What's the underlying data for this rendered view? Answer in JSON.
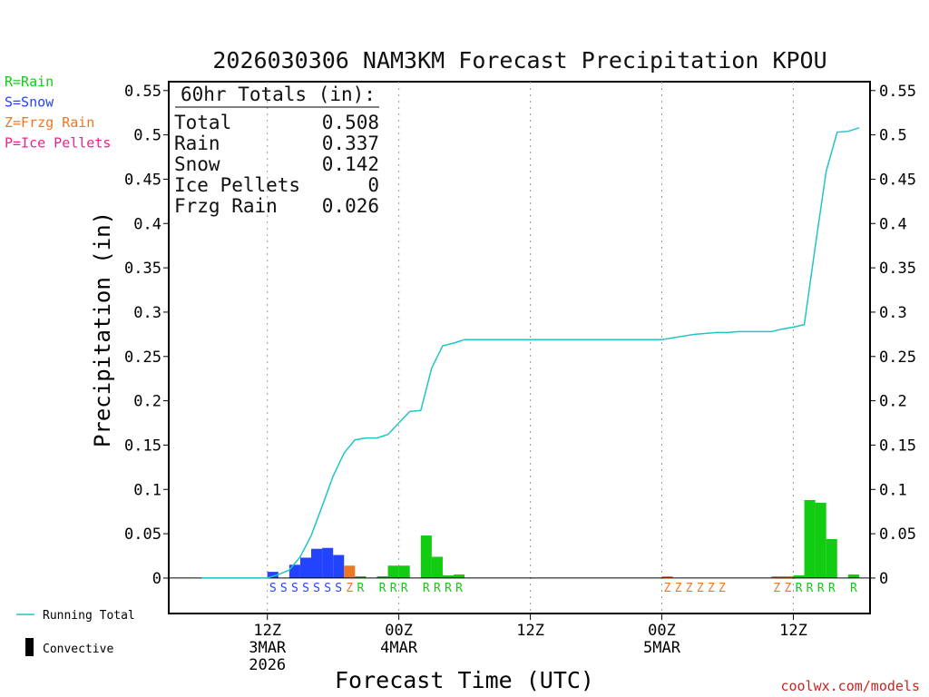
{
  "colors": {
    "rain": "#11cc11",
    "snow": "#2244ff",
    "frzg_rain": "#ee7722",
    "ice_pellets": "#ee2288",
    "running_total": "#22c4c4",
    "convective": "#000000",
    "credit": "#cc2222"
  },
  "legend_types": [
    {
      "key": "rain",
      "label": "R=Rain"
    },
    {
      "key": "snow",
      "label": "S=Snow"
    },
    {
      "key": "frzg_rain",
      "label": "Z=Frzg Rain"
    },
    {
      "key": "ice_pellets",
      "label": "P=Ice Pellets"
    }
  ],
  "legend_bottom": {
    "running_total": "Running Total",
    "convective": "Convective"
  },
  "totals_box": {
    "header": "60hr Totals (in):",
    "rows": [
      {
        "label": "Total",
        "value": "0.508"
      },
      {
        "label": "Rain",
        "value": "0.337"
      },
      {
        "label": "Snow",
        "value": "0.142"
      },
      {
        "label": "Ice Pellets",
        "value": "0"
      },
      {
        "label": "Frzg Rain",
        "value": "0.026"
      }
    ]
  },
  "credit": "coolwx.com/models",
  "chart_data": {
    "type": "bar",
    "title": "2026030306 NAM3KM Forecast Precipitation KPOU",
    "xlabel": "Forecast Time (UTC)",
    "ylabel": "Precipitation (in)",
    "ylim": [
      -0.04,
      0.56
    ],
    "xlim_hours": [
      -3,
      61
    ],
    "yticks": [
      0,
      0.05,
      0.1,
      0.15,
      0.2,
      0.25,
      0.3,
      0.35,
      0.4,
      0.45,
      0.5,
      0.55
    ],
    "ytick_labels": [
      "0",
      "0.05",
      "0.1",
      "0.15",
      "0.2",
      "0.25",
      "0.3",
      "0.35",
      "0.4",
      "0.45",
      "0.5",
      "0.55"
    ],
    "x_ticks": [
      {
        "hour": 6,
        "lines": [
          "12Z",
          "3MAR",
          "2026"
        ]
      },
      {
        "hour": 18,
        "lines": [
          "00Z",
          "4MAR"
        ]
      },
      {
        "hour": 30,
        "lines": [
          "12Z"
        ]
      },
      {
        "hour": 42,
        "lines": [
          "00Z",
          "5MAR"
        ]
      },
      {
        "hour": 54,
        "lines": [
          "12Z"
        ]
      }
    ],
    "bars": [
      {
        "hour": 7,
        "value": 0.007,
        "type": "snow"
      },
      {
        "hour": 9,
        "value": 0.015,
        "type": "snow"
      },
      {
        "hour": 10,
        "value": 0.023,
        "type": "snow"
      },
      {
        "hour": 11,
        "value": 0.033,
        "type": "snow"
      },
      {
        "hour": 12,
        "value": 0.034,
        "type": "snow"
      },
      {
        "hour": 13,
        "value": 0.026,
        "type": "snow"
      },
      {
        "hour": 14,
        "value": 0.014,
        "type": "frzg_rain"
      },
      {
        "hour": 15,
        "value": 0.002,
        "type": "rain"
      },
      {
        "hour": 17,
        "value": 0.002,
        "type": "rain"
      },
      {
        "hour": 18,
        "value": 0.014,
        "type": "rain"
      },
      {
        "hour": 19,
        "value": 0.014,
        "type": "rain"
      },
      {
        "hour": 21,
        "value": 0.048,
        "type": "rain"
      },
      {
        "hour": 22,
        "value": 0.024,
        "type": "rain"
      },
      {
        "hour": 23,
        "value": 0.003,
        "type": "rain"
      },
      {
        "hour": 24,
        "value": 0.004,
        "type": "rain"
      },
      {
        "hour": 43,
        "value": 0.002,
        "type": "frzg_rain"
      },
      {
        "hour": 53,
        "value": 0.002,
        "type": "frzg_rain"
      },
      {
        "hour": 54,
        "value": 0.002,
        "type": "frzg_rain"
      },
      {
        "hour": 55,
        "value": 0.003,
        "type": "rain"
      },
      {
        "hour": 56,
        "value": 0.088,
        "type": "rain"
      },
      {
        "hour": 57,
        "value": 0.085,
        "type": "rain"
      },
      {
        "hour": 58,
        "value": 0.044,
        "type": "rain"
      },
      {
        "hour": 60,
        "value": 0.004,
        "type": "rain"
      }
    ],
    "type_letters": [
      {
        "hour": 7,
        "letter": "S",
        "type": "snow"
      },
      {
        "hour": 8,
        "letter": "S",
        "type": "snow"
      },
      {
        "hour": 9,
        "letter": "S",
        "type": "snow"
      },
      {
        "hour": 10,
        "letter": "S",
        "type": "snow"
      },
      {
        "hour": 11,
        "letter": "S",
        "type": "snow"
      },
      {
        "hour": 12,
        "letter": "S",
        "type": "snow"
      },
      {
        "hour": 13,
        "letter": "S",
        "type": "snow"
      },
      {
        "hour": 14,
        "letter": "Z",
        "type": "frzg_rain"
      },
      {
        "hour": 15,
        "letter": "R",
        "type": "rain"
      },
      {
        "hour": 17,
        "letter": "R",
        "type": "rain"
      },
      {
        "hour": 18,
        "letter": "R",
        "type": "rain"
      },
      {
        "hour": 19,
        "letter": "R",
        "type": "rain"
      },
      {
        "hour": 21,
        "letter": "R",
        "type": "rain"
      },
      {
        "hour": 22,
        "letter": "R",
        "type": "rain"
      },
      {
        "hour": 23,
        "letter": "R",
        "type": "rain"
      },
      {
        "hour": 24,
        "letter": "R",
        "type": "rain"
      },
      {
        "hour": 43,
        "letter": "Z",
        "type": "frzg_rain"
      },
      {
        "hour": 44,
        "letter": "Z",
        "type": "frzg_rain"
      },
      {
        "hour": 45,
        "letter": "Z",
        "type": "frzg_rain"
      },
      {
        "hour": 46,
        "letter": "Z",
        "type": "frzg_rain"
      },
      {
        "hour": 47,
        "letter": "Z",
        "type": "frzg_rain"
      },
      {
        "hour": 48,
        "letter": "Z",
        "type": "frzg_rain"
      },
      {
        "hour": 53,
        "letter": "Z",
        "type": "frzg_rain"
      },
      {
        "hour": 54,
        "letter": "Z",
        "type": "frzg_rain"
      },
      {
        "hour": 55,
        "letter": "R",
        "type": "rain"
      },
      {
        "hour": 56,
        "letter": "R",
        "type": "rain"
      },
      {
        "hour": 57,
        "letter": "R",
        "type": "rain"
      },
      {
        "hour": 58,
        "letter": "R",
        "type": "rain"
      },
      {
        "hour": 60,
        "letter": "R",
        "type": "rain"
      }
    ],
    "running_total": {
      "hours": [
        0,
        1,
        2,
        3,
        4,
        5,
        6,
        7,
        8,
        9,
        10,
        11,
        12,
        13,
        14,
        15,
        16,
        17,
        18,
        19,
        20,
        21,
        22,
        23,
        24,
        25,
        30,
        36,
        42,
        43,
        44,
        45,
        46,
        47,
        48,
        49,
        50,
        51,
        52,
        53,
        54,
        55,
        56,
        57,
        58,
        59,
        60
      ],
      "values": [
        0,
        0,
        0,
        0,
        0,
        0,
        0,
        0.004,
        0.009,
        0.024,
        0.048,
        0.081,
        0.115,
        0.141,
        0.156,
        0.158,
        0.158,
        0.162,
        0.175,
        0.188,
        0.189,
        0.237,
        0.262,
        0.265,
        0.269,
        0.269,
        0.269,
        0.269,
        0.269,
        0.271,
        0.273,
        0.275,
        0.276,
        0.277,
        0.277,
        0.278,
        0.278,
        0.278,
        0.278,
        0.281,
        0.283,
        0.286,
        0.374,
        0.459,
        0.503,
        0.504,
        0.508
      ]
    }
  }
}
